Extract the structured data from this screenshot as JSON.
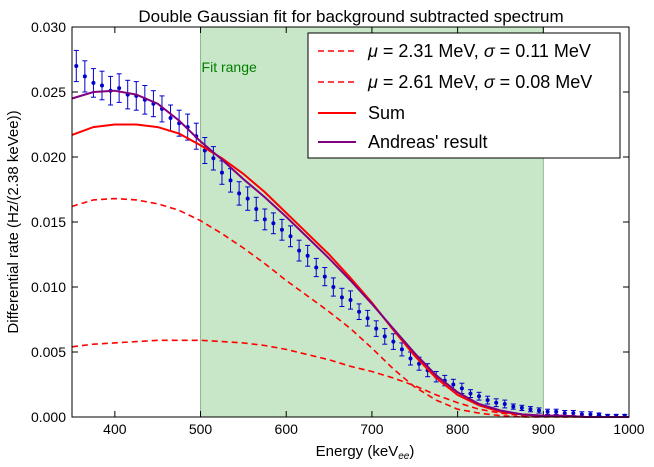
{
  "chart_data": {
    "type": "line",
    "title": "Double Gaussian fit for background subtracted spectrum",
    "xlabel": "Energy (keV",
    "xlabel_sub": "ee",
    "xlabel_close": ")",
    "ylabel": "Differential rate (Hz/(2.38 keVee))",
    "xlim": [
      350,
      1000
    ],
    "ylim": [
      0.0,
      0.03
    ],
    "xticks": [
      400,
      500,
      600,
      700,
      800,
      900,
      1000
    ],
    "xtick_labels": [
      "400",
      "500",
      "600",
      "700",
      "800",
      "900",
      "1000"
    ],
    "yticks": [
      0.0,
      0.005,
      0.01,
      0.015,
      0.02,
      0.025,
      0.03
    ],
    "ytick_labels": [
      "0.000",
      "0.005",
      "0.010",
      "0.015",
      "0.020",
      "0.025",
      "0.030"
    ],
    "fit_range": {
      "x0": 500,
      "x1": 900,
      "label": "Fit range",
      "color": "#008000"
    },
    "legend_position": "top-right",
    "series": [
      {
        "name": "μ = 2.31 MeV, σ = 0.11 MeV",
        "legend_mu": "2.31 MeV",
        "legend_sigma": "0.11 MeV",
        "style": "dashed",
        "color": "#ff0000",
        "x": [
          350,
          375,
          400,
          425,
          450,
          475,
          500,
          525,
          550,
          575,
          600,
          625,
          650,
          675,
          700,
          725,
          750,
          775,
          800,
          825,
          850,
          875,
          900,
          925,
          950,
          975,
          1000
        ],
        "y": [
          0.0162,
          0.0167,
          0.0168,
          0.0167,
          0.0164,
          0.0159,
          0.0151,
          0.0141,
          0.013,
          0.0118,
          0.0105,
          0.0093,
          0.0081,
          0.0068,
          0.0053,
          0.0037,
          0.0023,
          0.0013,
          0.0006,
          0.0003,
          0.0001,
          0.0,
          0.0,
          0.0,
          0.0,
          0.0,
          0.0
        ]
      },
      {
        "name": "μ = 2.61 MeV, σ = 0.08 MeV",
        "legend_mu": "2.61 MeV",
        "legend_sigma": "0.08 MeV",
        "style": "dashed",
        "color": "#ff0000",
        "x": [
          350,
          375,
          400,
          425,
          450,
          475,
          500,
          525,
          550,
          575,
          600,
          625,
          650,
          675,
          700,
          725,
          750,
          775,
          800,
          825,
          850,
          875,
          900,
          925,
          950,
          975,
          1000
        ],
        "y": [
          0.0054,
          0.0056,
          0.0057,
          0.0058,
          0.0059,
          0.0059,
          0.0059,
          0.0058,
          0.0057,
          0.0055,
          0.0052,
          0.0048,
          0.0044,
          0.0039,
          0.0035,
          0.003,
          0.0024,
          0.0017,
          0.0011,
          0.0006,
          0.0003,
          0.0001,
          0.0001,
          0.0,
          0.0,
          0.0,
          0.0
        ]
      },
      {
        "name": "Sum",
        "style": "solid",
        "color": "#ff0000",
        "x": [
          350,
          375,
          400,
          425,
          450,
          475,
          500,
          525,
          550,
          575,
          600,
          625,
          650,
          675,
          700,
          725,
          750,
          775,
          800,
          825,
          850,
          875,
          900,
          925,
          950,
          975,
          1000
        ],
        "y": [
          0.0217,
          0.0223,
          0.0225,
          0.0225,
          0.0223,
          0.0218,
          0.0209,
          0.0199,
          0.0187,
          0.0173,
          0.0157,
          0.0141,
          0.0125,
          0.0107,
          0.0088,
          0.0067,
          0.0047,
          0.003,
          0.0017,
          0.0009,
          0.0004,
          0.0002,
          0.0001,
          0.0001,
          0.0,
          0.0,
          0.0
        ]
      },
      {
        "name": "Andreas' result",
        "style": "solid",
        "color": "#800080",
        "x": [
          350,
          375,
          400,
          425,
          450,
          475,
          500,
          525,
          550,
          575,
          600,
          625,
          650,
          675,
          700,
          725,
          750,
          775,
          800,
          825,
          850,
          875,
          900,
          925,
          950,
          975,
          1000
        ],
        "y": [
          0.0245,
          0.025,
          0.0251,
          0.0248,
          0.0241,
          0.0228,
          0.0212,
          0.0198,
          0.0183,
          0.0169,
          0.0154,
          0.0138,
          0.0122,
          0.0105,
          0.0087,
          0.0068,
          0.0049,
          0.0032,
          0.0019,
          0.001,
          0.0005,
          0.0002,
          0.0001,
          0.0001,
          0.0,
          0.0,
          0.0
        ]
      }
    ],
    "data_points": {
      "color": "#0000cc",
      "x": [
        355,
        365,
        375,
        385,
        395,
        405,
        415,
        425,
        435,
        445,
        455,
        465,
        475,
        485,
        495,
        505,
        515,
        525,
        535,
        545,
        555,
        565,
        575,
        585,
        595,
        605,
        615,
        625,
        635,
        645,
        655,
        665,
        675,
        685,
        695,
        705,
        715,
        725,
        735,
        745,
        755,
        765,
        775,
        785,
        795,
        805,
        815,
        825,
        835,
        845,
        855,
        865,
        875,
        885,
        895,
        905,
        915,
        925,
        935,
        945,
        955,
        965,
        975,
        985,
        995
      ],
      "y": [
        0.027,
        0.0262,
        0.0257,
        0.0255,
        0.0251,
        0.0253,
        0.0248,
        0.0247,
        0.0244,
        0.0241,
        0.0237,
        0.023,
        0.0226,
        0.0223,
        0.0216,
        0.0205,
        0.0199,
        0.0188,
        0.0182,
        0.0172,
        0.0168,
        0.016,
        0.0152,
        0.0149,
        0.0144,
        0.0139,
        0.0128,
        0.0124,
        0.0115,
        0.0108,
        0.01,
        0.0092,
        0.009,
        0.0081,
        0.0076,
        0.0068,
        0.0062,
        0.0058,
        0.0052,
        0.0045,
        0.0041,
        0.0036,
        0.0031,
        0.0028,
        0.0025,
        0.0022,
        0.0018,
        0.0016,
        0.0013,
        0.0011,
        0.001,
        0.0008,
        0.0007,
        0.0006,
        0.0005,
        0.0004,
        0.0004,
        0.0003,
        0.0003,
        0.0002,
        0.0002,
        0.0002,
        0.0001,
        0.0001,
        0.0001
      ],
      "err": [
        0.0012,
        0.0012,
        0.0011,
        0.0011,
        0.0011,
        0.0011,
        0.0011,
        0.0011,
        0.0011,
        0.001,
        0.001,
        0.001,
        0.001,
        0.001,
        0.001,
        0.001,
        0.0009,
        0.0009,
        0.0009,
        0.0009,
        0.0009,
        0.0009,
        0.0008,
        0.0008,
        0.0008,
        0.0008,
        0.0008,
        0.0008,
        0.0007,
        0.0007,
        0.0007,
        0.0007,
        0.0007,
        0.0006,
        0.0006,
        0.0006,
        0.0006,
        0.0006,
        0.0005,
        0.0005,
        0.0005,
        0.0005,
        0.0004,
        0.0004,
        0.0004,
        0.0004,
        0.0003,
        0.0003,
        0.0003,
        0.0003,
        0.0003,
        0.0002,
        0.0002,
        0.0002,
        0.0002,
        0.0002,
        0.0002,
        0.0002,
        0.0002,
        0.0002,
        0.0002,
        0.0001,
        0.0001,
        0.0001,
        0.0001
      ]
    }
  }
}
